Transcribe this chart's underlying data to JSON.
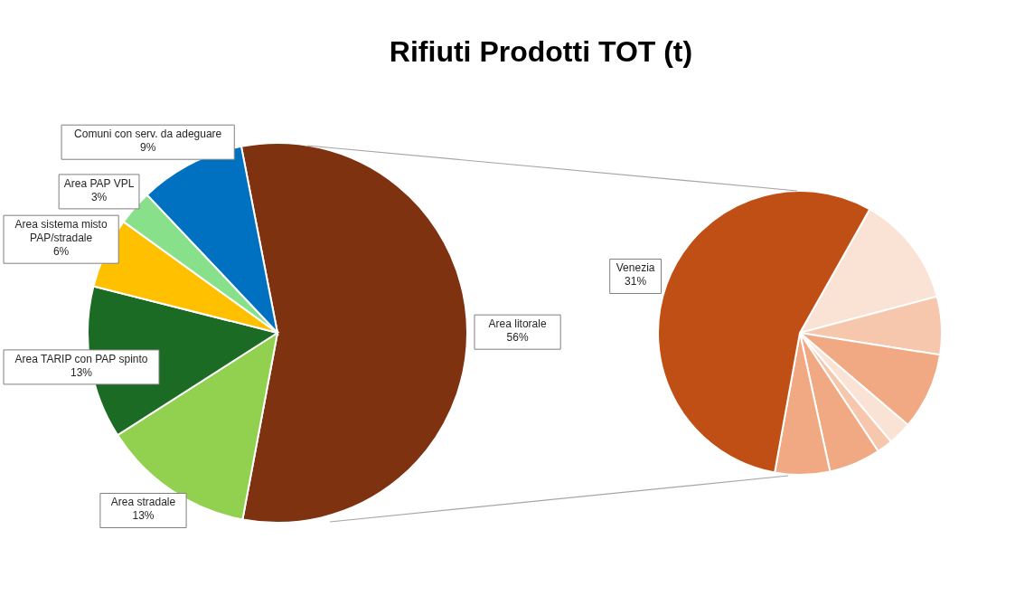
{
  "chart_data": [
    {
      "type": "pie",
      "title": "Rifiuti Prodotti TOT (t)",
      "categories": [
        "Area litorale",
        "Area stradale",
        "Area TARIP con PAP spinto",
        "Area sistema misto PAP/stradale",
        "Area PAP VPL",
        "Comuni con serv. da adeguare"
      ],
      "values": [
        56,
        13,
        13,
        6,
        3,
        9
      ],
      "value_labels": [
        "56%",
        "13%",
        "13%",
        "6%",
        "3%",
        "9%"
      ],
      "colors": [
        "#7f3210",
        "#92d050",
        "#1b6b24",
        "#ffc000",
        "#88e08a",
        "#0070c0"
      ]
    },
    {
      "type": "pie",
      "categories": [
        null,
        null,
        null,
        null,
        null,
        null,
        null,
        "Venezia"
      ],
      "values": [
        7.1,
        3.7,
        4.9,
        1.5,
        1.0,
        3.3,
        3.5,
        31
      ],
      "value_labels": [
        null,
        null,
        null,
        null,
        null,
        null,
        null,
        "31%"
      ],
      "colors": [
        "#fae2d5",
        "#f6c6ad",
        "#f1a983",
        "#fae2d5",
        "#f6c6ad",
        "#f1a983",
        "#f1a983",
        "#c04f15"
      ]
    }
  ]
}
